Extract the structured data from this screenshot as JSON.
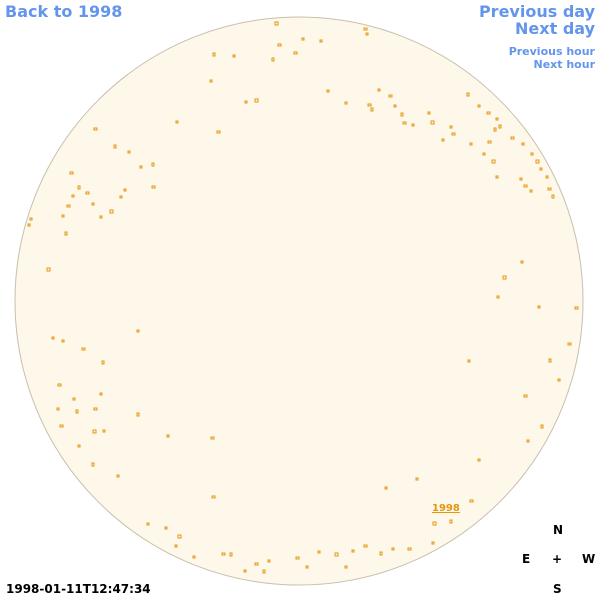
{
  "navigation": {
    "back": "Back to 1998",
    "previous_day": "Previous day",
    "next_day": "Next day",
    "previous_hour": "Previous hour",
    "next_hour": "Next hour"
  },
  "disk_label": "1998",
  "compass": {
    "north": "N",
    "east": "E",
    "center": "+",
    "west": "W",
    "south": "S"
  },
  "timestamp": "1998-01-11T12:47:34"
}
